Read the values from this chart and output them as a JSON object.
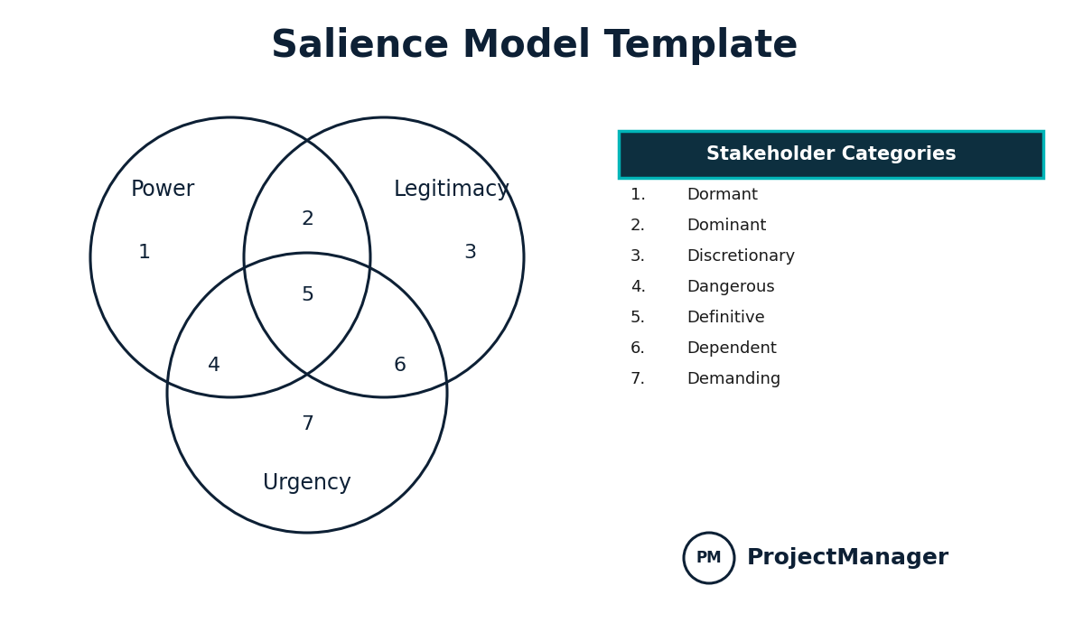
{
  "title": "Salience Model Template",
  "title_color": "#0d2035",
  "title_fontsize": 30,
  "circle_color": "#0d2035",
  "circle_linewidth": 2.2,
  "circle_facecolor": "none",
  "background_color": "#ffffff",
  "header_bg": "#0d2f3f",
  "header_text": "Stakeholder Categories",
  "header_text_color": "#ffffff",
  "header_fontsize": 15,
  "accent_color": "#00b5b8",
  "categories": [
    {
      "num": "1.",
      "text": "Dormant"
    },
    {
      "num": "2.",
      "text": "Dominant"
    },
    {
      "num": "3.",
      "text": "Discretionary"
    },
    {
      "num": "4.",
      "text": "Dangerous"
    },
    {
      "num": "5.",
      "text": "Definitive"
    },
    {
      "num": "6.",
      "text": "Dependent"
    },
    {
      "num": "7.",
      "text": "Demanding"
    }
  ],
  "category_fontsize": 13,
  "category_text_color": "#1a1a1a",
  "pm_logo_text": "PM",
  "pm_brand_text": "ProjectManager",
  "pm_fontsize": 18,
  "pm_color": "#0d2035",
  "label_fontsize": 17,
  "number_fontsize": 16
}
